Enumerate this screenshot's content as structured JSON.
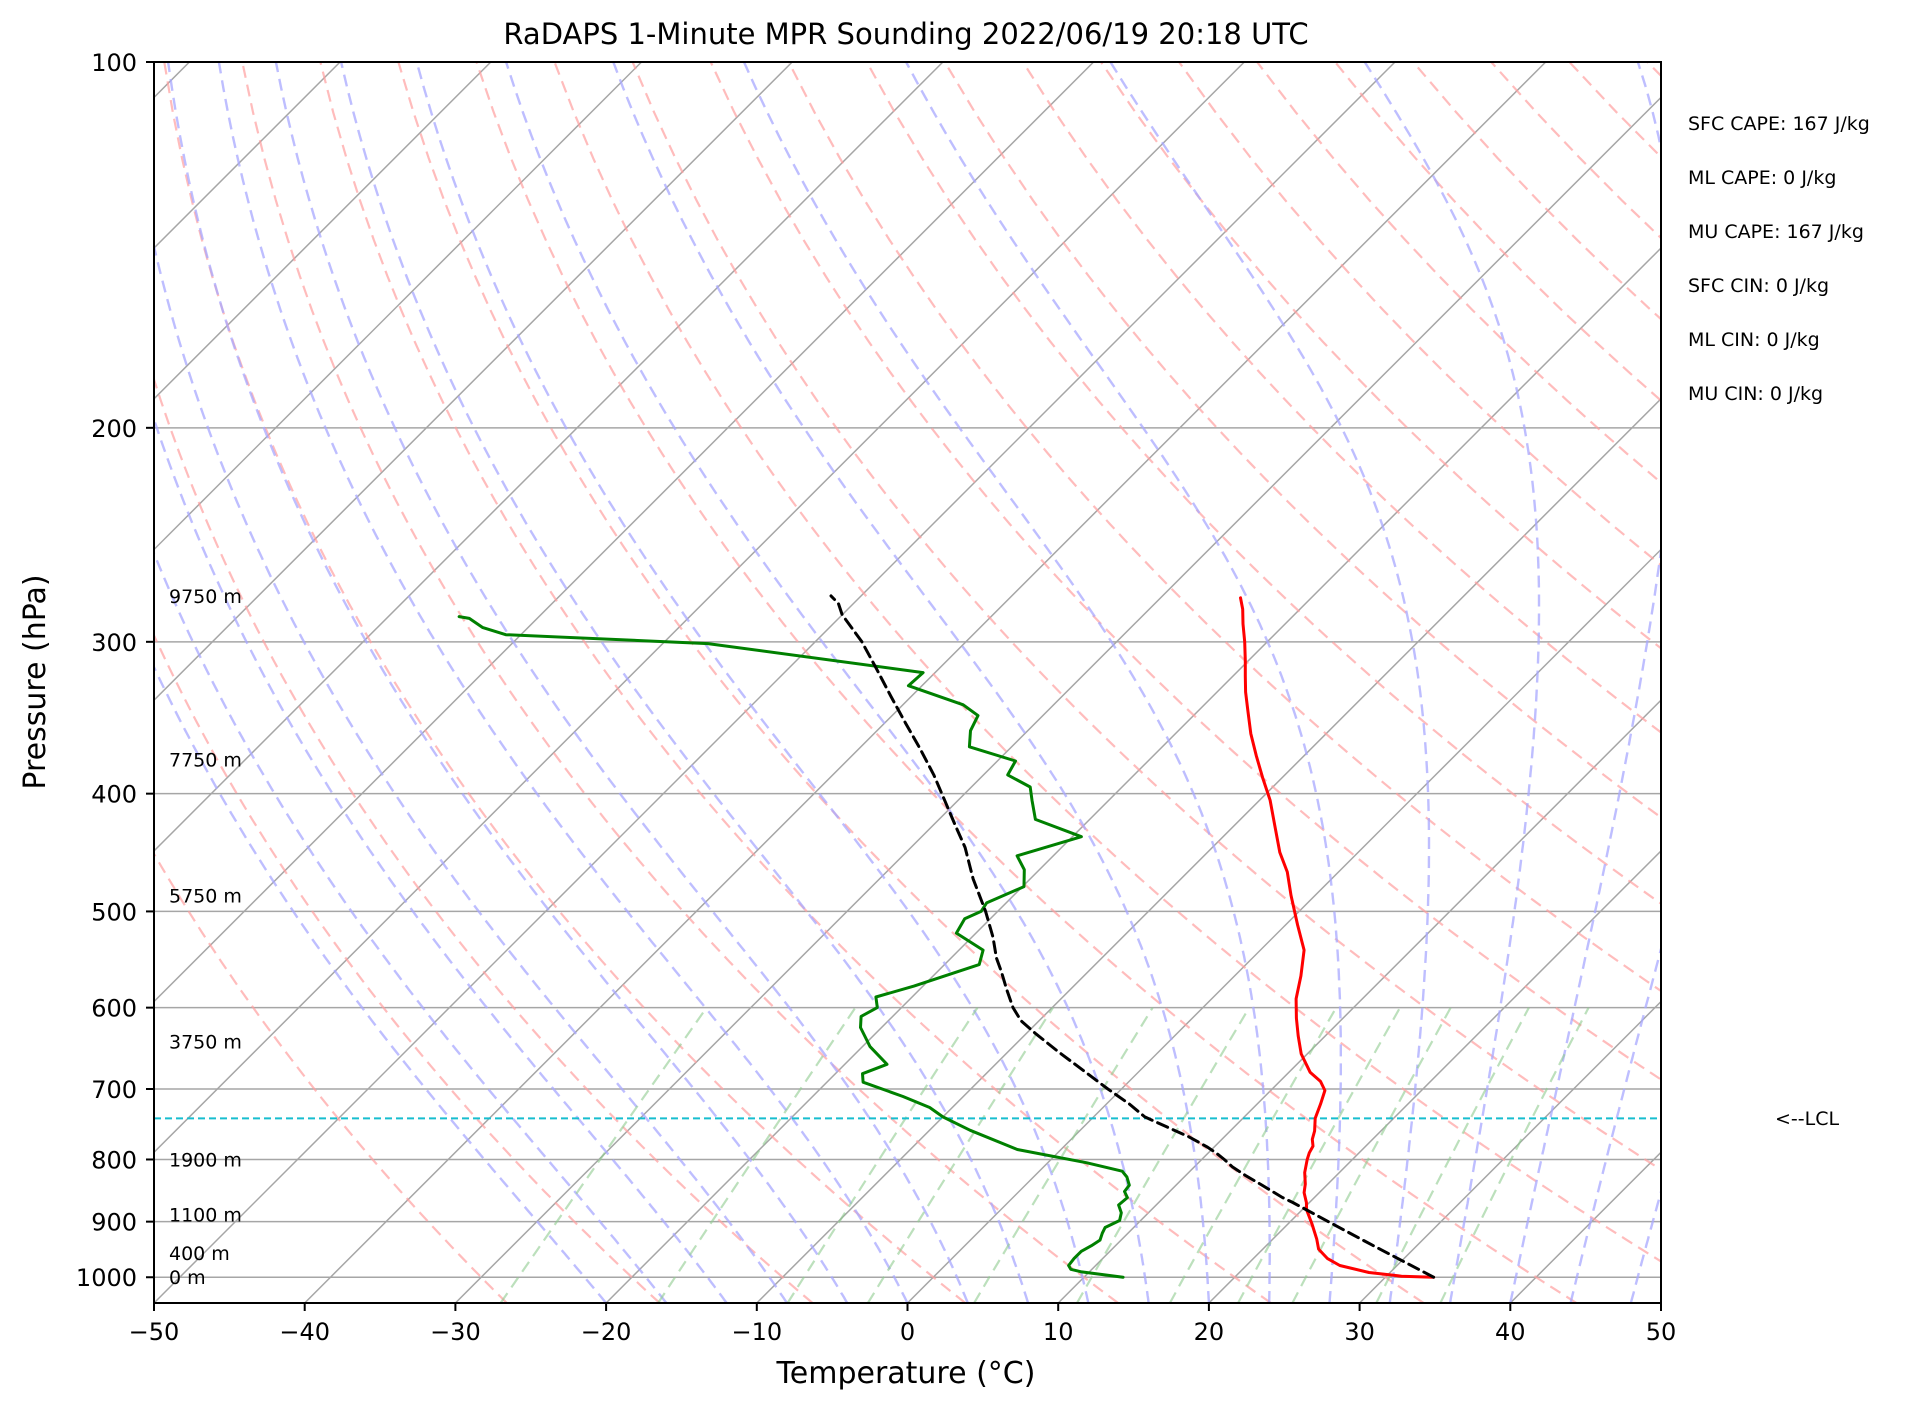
{
  "chart_data": {
    "type": "line",
    "title": "RaDAPS 1-Minute MPR Sounding 2022/06/19 20:18 UTC",
    "xlabel": "Temperature (°C)",
    "ylabel": "Pressure (hPa)",
    "x_ticks": [
      -50,
      -40,
      -30,
      -20,
      -10,
      0,
      10,
      20,
      30,
      40,
      50
    ],
    "y_ticks": [
      100,
      200,
      300,
      400,
      500,
      600,
      700,
      800,
      900,
      1000
    ],
    "xlim": [
      -50,
      50
    ],
    "ylim": [
      1050,
      100
    ],
    "y_scale": "log",
    "grid": true,
    "skew": "skew-T log-p diagram",
    "series": [
      {
        "label": "temperature",
        "color": "#ff0000",
        "points": [
          [
            33.2,
            1000
          ],
          [
            31,
            998
          ],
          [
            28.6,
            991
          ],
          [
            26.2,
            978
          ],
          [
            24.9,
            965
          ],
          [
            23.7,
            948
          ],
          [
            22.9,
            930
          ],
          [
            21.6,
            904
          ],
          [
            20.3,
            880
          ],
          [
            19.8,
            868
          ],
          [
            19,
            852
          ],
          [
            18.5,
            838
          ],
          [
            17.7,
            820
          ],
          [
            17,
            800
          ],
          [
            16.7,
            790
          ],
          [
            16.5,
            780
          ],
          [
            16,
            770
          ],
          [
            15.6,
            758
          ],
          [
            14.8,
            740
          ],
          [
            14.2,
            720
          ],
          [
            13.6,
            702
          ],
          [
            12.7,
            690
          ],
          [
            11.4,
            678
          ],
          [
            9.6,
            655
          ],
          [
            8.2,
            633
          ],
          [
            6.9,
            612
          ],
          [
            5.6,
            590
          ],
          [
            4.4,
            565
          ],
          [
            2.9,
            538
          ],
          [
            0.8,
            513
          ],
          [
            -1.6,
            485
          ],
          [
            -3.4,
            464
          ],
          [
            -5.2,
            447
          ],
          [
            -7.3,
            425
          ],
          [
            -9.3,
            405
          ],
          [
            -11.3,
            388
          ],
          [
            -13.2,
            372
          ],
          [
            -15,
            357
          ],
          [
            -16.7,
            342
          ],
          [
            -18.1,
            330
          ],
          [
            -19.2,
            320
          ],
          [
            -20.2,
            311
          ],
          [
            -21.5,
            300
          ],
          [
            -22.8,
            290
          ],
          [
            -23.8,
            282
          ],
          [
            -24.7,
            276
          ]
        ]
      },
      {
        "label": "dewpoint",
        "color": "#008000",
        "points": [
          [
            12.6,
            1000
          ],
          [
            9.5,
            990
          ],
          [
            8.6,
            985
          ],
          [
            8.2,
            978
          ],
          [
            8.1,
            965
          ],
          [
            8.1,
            952
          ],
          [
            8.4,
            942
          ],
          [
            8.6,
            932
          ],
          [
            8.3,
            920
          ],
          [
            8.1,
            910
          ],
          [
            8.6,
            898
          ],
          [
            8.2,
            885
          ],
          [
            7.5,
            872
          ],
          [
            7.6,
            860
          ],
          [
            7,
            850
          ],
          [
            6.9,
            840
          ],
          [
            6.2,
            827
          ],
          [
            5.5,
            818
          ],
          [
            2.6,
            805
          ],
          [
            -2.9,
            785
          ],
          [
            -7.3,
            757
          ],
          [
            -10,
            738
          ],
          [
            -11.5,
            725
          ],
          [
            -14,
            710
          ],
          [
            -17.6,
            691
          ],
          [
            -18.2,
            680
          ],
          [
            -17.2,
            668
          ],
          [
            -19.5,
            646
          ],
          [
            -21.4,
            623
          ],
          [
            -22.1,
            610
          ],
          [
            -21.6,
            600
          ],
          [
            -22.4,
            588
          ],
          [
            -20.6,
            576
          ],
          [
            -17.7,
            553
          ],
          [
            -18.4,
            538
          ],
          [
            -21.3,
            521
          ],
          [
            -21.7,
            507
          ],
          [
            -21.1,
            500
          ],
          [
            -21.3,
            492
          ],
          [
            -19.9,
            477
          ],
          [
            -21,
            462
          ],
          [
            -22.4,
            450
          ],
          [
            -19.4,
            434
          ],
          [
            -23.6,
            420
          ],
          [
            -25.1,
            405
          ],
          [
            -26.1,
            395
          ],
          [
            -28.4,
            386
          ],
          [
            -28.8,
            376
          ],
          [
            -32.8,
            366
          ],
          [
            -33.8,
            355
          ],
          [
            -34.3,
            345
          ],
          [
            -36,
            338
          ],
          [
            -40.9,
            326
          ],
          [
            -40.8,
            318
          ],
          [
            -57,
            301
          ],
          [
            -71,
            296
          ],
          [
            -73,
            292
          ],
          [
            -74.5,
            287
          ],
          [
            -75.3,
            286
          ]
        ]
      },
      {
        "label": "parcel",
        "color": "#000000",
        "dashed": true,
        "points": [
          [
            33.2,
            1000
          ],
          [
            26.9,
            940
          ],
          [
            23.3,
            907
          ],
          [
            18.9,
            868
          ],
          [
            17.9,
            860
          ],
          [
            15.5,
            838
          ],
          [
            14,
            825
          ],
          [
            12.5,
            811
          ],
          [
            11.5,
            800
          ],
          [
            10.5,
            790
          ],
          [
            9.5,
            781
          ],
          [
            7.6,
            766
          ],
          [
            5.5,
            752
          ],
          [
            3.4,
            738
          ],
          [
            1.5,
            720
          ],
          [
            -0.9,
            700
          ],
          [
            -3.5,
            678
          ],
          [
            -6.7,
            652
          ],
          [
            -9.4,
            630
          ],
          [
            -11.2,
            615
          ],
          [
            -12.6,
            600
          ],
          [
            -14.2,
            580
          ],
          [
            -15.8,
            560
          ],
          [
            -17,
            546
          ],
          [
            -18.6,
            525
          ],
          [
            -20.8,
            500
          ],
          [
            -23.8,
            470
          ],
          [
            -26.4,
            443
          ],
          [
            -28.5,
            425
          ],
          [
            -30.9,
            405
          ],
          [
            -33.3,
            386
          ],
          [
            -36,
            367
          ],
          [
            -38.6,
            350
          ],
          [
            -41.3,
            333
          ],
          [
            -44.1,
            316
          ],
          [
            -46.9,
            300
          ],
          [
            -50,
            285
          ],
          [
            -51,
            279
          ],
          [
            -52,
            275
          ]
        ]
      }
    ],
    "lcl_pressure": 740,
    "lcl_label": "<--LCL",
    "height_labels": [
      {
        "text": "9750 m",
        "p": 275
      },
      {
        "text": "7750 m",
        "p": 375
      },
      {
        "text": "5750 m",
        "p": 485
      },
      {
        "text": "3750 m",
        "p": 640
      },
      {
        "text": "1900 m",
        "p": 800
      },
      {
        "text": "1100 m",
        "p": 888
      },
      {
        "text": "400 m",
        "p": 955
      },
      {
        "text": "0 m",
        "p": 1000
      }
    ],
    "annotations": [
      "SFC CAPE: 167 J/kg",
      "ML CAPE: 0 J/kg",
      "MU CAPE: 167 J/kg",
      "SFC CIN: 0 J/kg",
      "ML CIN: 0 J/kg",
      "MU CIN: 0 J/kg"
    ],
    "colors": {
      "isotherm": "#a6a6a6",
      "dry_adiabat": "#ff9f9f",
      "moist_adiabat": "#a8a8ff",
      "mixing_ratio": "#8fcc8f",
      "lcl_line": "#17becf"
    }
  }
}
